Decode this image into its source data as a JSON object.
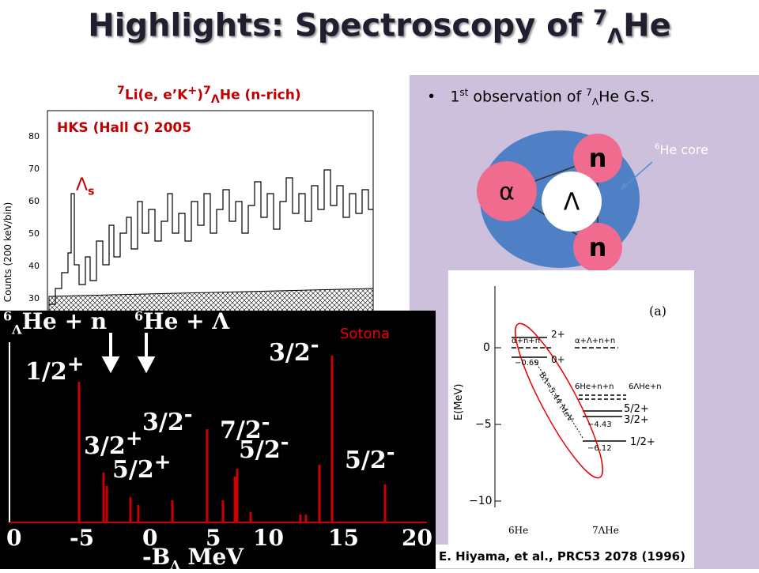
{
  "title": {
    "main": "Highlights:  Spectroscopy of ",
    "sup": "7",
    "sub": "Λ",
    "tail": "He"
  },
  "spectrum": {
    "reaction": {
      "sup1": "7",
      "a": "Li(e, e’K",
      "sup2": "+",
      "b": ")",
      "sup3": "7",
      "sub": "Λ",
      "c": "He  (n-rich)"
    },
    "experiment": "HKS (Hall C) 2005",
    "peak_label": {
      "a": "Λ",
      "sub": "s"
    },
    "y_label": "Counts (200 keV/bin)",
    "yticks": [
      "80",
      "70",
      "60",
      "50",
      "40",
      "30"
    ]
  },
  "theory": {
    "threshold1": {
      "sup": "6",
      "sub": "Λ",
      "text": "He + n"
    },
    "threshold2": {
      "sup": "6",
      "text": "He + Λ"
    },
    "author": "Sotona",
    "levels": [
      {
        "j": "3/2",
        "p": "-"
      },
      {
        "j": "1/2",
        "p": "+"
      },
      {
        "j": "3/2",
        "p": "-"
      },
      {
        "j": "7/2",
        "p": "-"
      },
      {
        "j": "3/2",
        "p": "+"
      },
      {
        "j": "5/2",
        "p": "-"
      },
      {
        "j": "5/2",
        "p": "+"
      },
      {
        "j": "5/2",
        "p": "-"
      }
    ],
    "x_ticks": [
      "0",
      "-5",
      "0",
      "5",
      "10",
      "15",
      "20"
    ],
    "x_label": {
      "a": "-B",
      "sub": "Λ",
      "b": " MeV"
    }
  },
  "bullet": {
    "a": "1",
    "sup1": "st",
    "b": " observation of ",
    "sup2": "7",
    "sub": "Λ",
    "c": "He G.S."
  },
  "cluster": {
    "core_label": {
      "sup": "6",
      "text": "He core"
    },
    "particles": [
      "n",
      "α",
      "Λ",
      "n"
    ]
  },
  "level_scheme": {
    "panel": "(a)",
    "y_label": "E(MeV)",
    "yticks": [
      "0",
      "−5",
      "−10"
    ],
    "left_threshold": "α+n+n",
    "right_threshold": "α+Λ+n+n",
    "state_2": "2+",
    "state_0": "0+",
    "e1": "−0.69",
    "he_nn": "6He+n+n",
    "lhe_n": "6ΛHe+n",
    "s52": "5/2+",
    "s32": "3/2+",
    "e2": "−4.43",
    "s12": "1/2+",
    "e3": "−6.12",
    "binding": "BΛ=5.44 MeV",
    "bottom_left": "6He",
    "bottom_right": "7ΛHe"
  },
  "citation": "E. Hiyama, et al., PRC53 2078 (1996)"
}
